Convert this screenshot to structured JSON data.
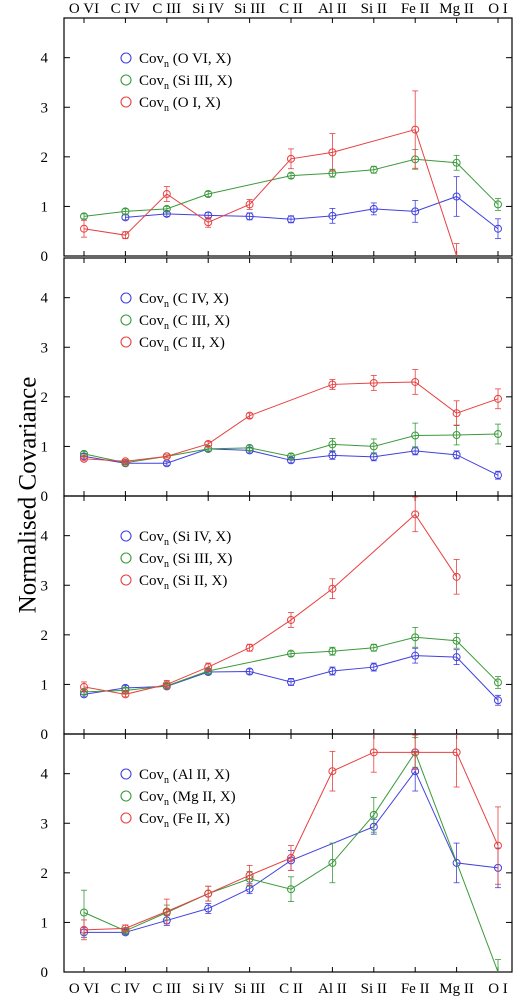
{
  "figure": {
    "ylabel": "Normalised Covariance"
  },
  "colors": {
    "blue": "#4040e0",
    "green": "#3a9a3a",
    "red": "#e84040"
  },
  "chart_data": {
    "type": "line",
    "categories": [
      "O VI",
      "C IV",
      "C III",
      "Si IV",
      "Si III",
      "C II",
      "Al II",
      "Si II",
      "Fe II",
      "Mg II",
      "O I"
    ],
    "ylabel": "Normalised Covariance",
    "ylim": [
      0,
      4.8
    ],
    "yticks": [
      0,
      1,
      2,
      3,
      4
    ],
    "panels": [
      {
        "series": [
          {
            "name": "(O VI, X)",
            "color": "blue",
            "values": [
              null,
              0.78,
              0.85,
              0.82,
              0.8,
              0.74,
              0.81,
              0.95,
              0.9,
              1.2,
              0.55
            ],
            "errors": [
              null,
              0.05,
              0.05,
              0.06,
              0.07,
              0.07,
              0.15,
              0.12,
              0.22,
              0.4,
              0.2
            ]
          },
          {
            "name": "(Si III, X)",
            "color": "green",
            "values": [
              0.8,
              0.9,
              0.95,
              1.25,
              null,
              1.62,
              1.67,
              1.74,
              1.95,
              1.88,
              1.04
            ],
            "errors": [
              0.05,
              0.05,
              0.05,
              0.05,
              null,
              0.05,
              0.08,
              0.07,
              0.2,
              0.15,
              0.12
            ]
          },
          {
            "name": "(O I, X)",
            "color": "red",
            "values": [
              0.55,
              0.42,
              1.25,
              0.68,
              1.04,
              1.96,
              2.09,
              null,
              2.55,
              null,
              null
            ],
            "errors": [
              0.17,
              0.07,
              0.15,
              0.1,
              0.1,
              0.2,
              0.38,
              null,
              0.78,
              null,
              null
            ],
            "tail": {
              "to_category": "Mg II",
              "value": 0,
              "error": 0.25
            }
          }
        ]
      },
      {
        "series": [
          {
            "name": "(C IV, X)",
            "color": "blue",
            "values": [
              0.8,
              0.66,
              0.66,
              0.95,
              0.92,
              0.72,
              0.82,
              0.79,
              0.91,
              0.83,
              0.42
            ],
            "errors": [
              0.05,
              0.03,
              0.04,
              0.05,
              0.05,
              0.05,
              0.08,
              0.08,
              0.08,
              0.08,
              0.08
            ]
          },
          {
            "name": "(C III, X)",
            "color": "green",
            "values": [
              0.85,
              0.67,
              0.8,
              0.95,
              0.97,
              0.8,
              1.04,
              1.0,
              1.22,
              1.23,
              1.25
            ],
            "errors": [
              0.05,
              0.03,
              0.03,
              0.04,
              0.05,
              0.05,
              0.12,
              0.15,
              0.25,
              0.2,
              0.2
            ]
          },
          {
            "name": "(C II, X)",
            "color": "red",
            "values": [
              0.75,
              0.7,
              0.8,
              1.05,
              1.62,
              null,
              2.25,
              2.28,
              2.3,
              1.67,
              1.96
            ],
            "errors": [
              0.04,
              0.03,
              0.03,
              0.05,
              0.05,
              null,
              0.1,
              0.15,
              0.25,
              0.25,
              0.2
            ]
          }
        ]
      },
      {
        "series": [
          {
            "name": "(Si IV, X)",
            "color": "blue",
            "values": [
              0.8,
              0.93,
              0.96,
              1.25,
              1.26,
              1.05,
              1.27,
              1.35,
              1.58,
              1.55,
              0.68
            ],
            "errors": [
              0.05,
              0.05,
              0.05,
              0.05,
              0.05,
              0.07,
              0.08,
              0.08,
              0.15,
              0.15,
              0.1
            ]
          },
          {
            "name": "(Si III, X)",
            "color": "green",
            "values": [
              0.85,
              0.88,
              0.97,
              1.27,
              null,
              1.62,
              1.67,
              1.74,
              1.95,
              1.88,
              1.04
            ],
            "errors": [
              0.05,
              0.05,
              0.05,
              0.05,
              null,
              0.05,
              0.08,
              0.07,
              0.2,
              0.15,
              0.12
            ]
          },
          {
            "name": "(Si II, X)",
            "color": "red",
            "values": [
              0.95,
              0.8,
              1.0,
              1.35,
              1.74,
              2.3,
              2.93,
              null,
              4.43,
              3.17,
              null
            ],
            "errors": [
              0.1,
              0.05,
              0.08,
              0.08,
              0.07,
              0.15,
              0.2,
              null,
              0.35,
              0.35,
              null
            ]
          }
        ]
      },
      {
        "series": [
          {
            "name": "(Al II, X)",
            "color": "blue",
            "values": [
              0.8,
              0.8,
              1.04,
              1.28,
              1.68,
              2.25,
              null,
              2.93,
              4.05,
              2.2,
              2.1
            ],
            "errors": [
              0.1,
              0.05,
              0.1,
              0.1,
              0.1,
              0.2,
              null,
              0.15,
              0.4,
              0.4,
              0.4
            ]
          },
          {
            "name": "(Mg II, X)",
            "color": "green",
            "values": [
              1.2,
              0.83,
              1.2,
              1.58,
              1.88,
              1.67,
              2.2,
              3.17,
              4.43,
              null,
              null
            ],
            "errors": [
              0.45,
              0.05,
              0.15,
              0.15,
              0.15,
              0.25,
              0.4,
              0.35,
              0.3,
              null,
              null
            ],
            "tail": {
              "to_category": "O I",
              "value": 0,
              "error": 0.25
            }
          },
          {
            "name": "(Fe II, X)",
            "color": "red",
            "values": [
              0.85,
              0.88,
              1.22,
              1.58,
              1.95,
              2.3,
              4.05,
              4.43,
              4.43,
              4.43,
              2.55
            ],
            "errors": [
              0.2,
              0.07,
              0.25,
              0.15,
              0.2,
              0.25,
              0.4,
              0.4,
              0.35,
              0.7,
              0.78
            ]
          }
        ]
      }
    ]
  },
  "legend": {
    "prefix": "Cov",
    "subscript": "n"
  }
}
